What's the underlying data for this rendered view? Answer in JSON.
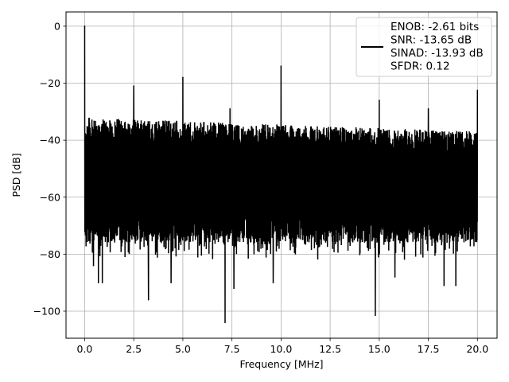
{
  "chart_data": {
    "type": "line",
    "title": "",
    "xlabel": "Frequency [MHz]",
    "ylabel": "PSD [dB]",
    "xlim": [
      -0.95,
      21.0
    ],
    "ylim": [
      -109.5,
      5
    ],
    "xticks": [
      0.0,
      2.5,
      5.0,
      7.5,
      10.0,
      12.5,
      15.0,
      17.5,
      20.0
    ],
    "xtick_labels": [
      "0.0",
      "2.5",
      "5.0",
      "7.5",
      "10.0",
      "12.5",
      "15.0",
      "17.5",
      "20.0"
    ],
    "yticks": [
      0,
      -20,
      -40,
      -60,
      -80,
      -100
    ],
    "ytick_labels": [
      "0",
      "−20",
      "−40",
      "−60",
      "−80",
      "−100"
    ],
    "grid": true,
    "legend": {
      "placement": "upper-right",
      "entries": [
        "ENOB: -2.61 bits",
        "SNR: -13.65 dB",
        "SINAD: -13.93 dB",
        "SFDR: 0.12"
      ]
    },
    "series": [
      {
        "color": "#000000",
        "x_range": [
          0.0,
          20.0
        ],
        "noise_floor_band_dB": [
          -80,
          -35
        ],
        "noise_top_dB": [
          -32,
          -37
        ],
        "spikes": [
          {
            "x": 0.0,
            "y": 0
          },
          {
            "x": 2.5,
            "y": -21
          },
          {
            "x": 5.0,
            "y": -18
          },
          {
            "x": 7.4,
            "y": -29
          },
          {
            "x": 10.0,
            "y": -14
          },
          {
            "x": 15.0,
            "y": -26
          },
          {
            "x": 17.5,
            "y": -29
          },
          {
            "x": 20.0,
            "y": -22.5
          }
        ],
        "dips": [
          {
            "x": 0.45,
            "y": -84
          },
          {
            "x": 0.7,
            "y": -90
          },
          {
            "x": 0.9,
            "y": -90
          },
          {
            "x": 3.25,
            "y": -96
          },
          {
            "x": 4.4,
            "y": -90
          },
          {
            "x": 7.15,
            "y": -104
          },
          {
            "x": 7.6,
            "y": -92
          },
          {
            "x": 9.6,
            "y": -90
          },
          {
            "x": 14.8,
            "y": -101.5
          },
          {
            "x": 15.8,
            "y": -88
          },
          {
            "x": 18.3,
            "y": -91
          },
          {
            "x": 18.9,
            "y": -91
          }
        ]
      }
    ]
  }
}
